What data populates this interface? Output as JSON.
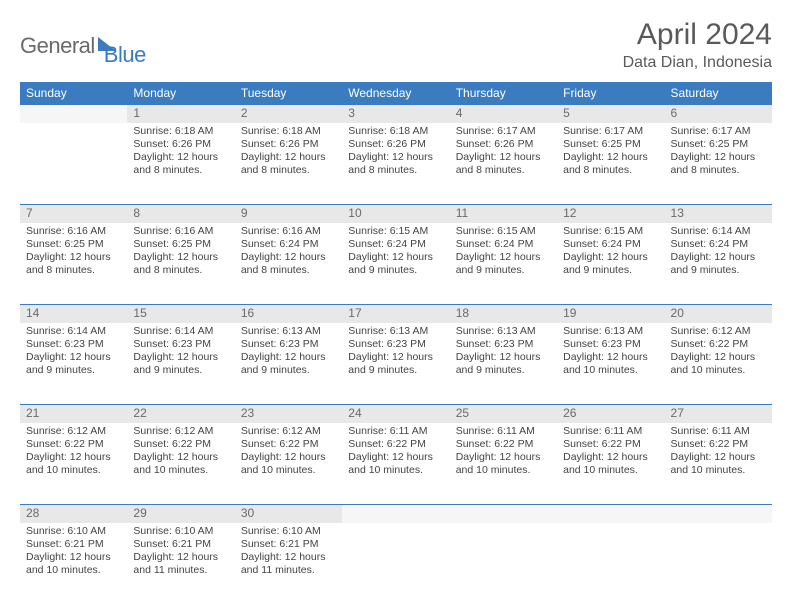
{
  "logo": {
    "part1": "General",
    "part2": "Blue"
  },
  "title": "April 2024",
  "location": "Data Dian, Indonesia",
  "header_bg": "#3b7bbf",
  "daynum_bg": "#e8e8e8",
  "text_color": "#444444",
  "day_headers": [
    "Sunday",
    "Monday",
    "Tuesday",
    "Wednesday",
    "Thursday",
    "Friday",
    "Saturday"
  ],
  "weeks": [
    [
      null,
      {
        "n": "1",
        "sr": "6:18 AM",
        "ss": "6:26 PM",
        "dl": "12 hours and 8 minutes."
      },
      {
        "n": "2",
        "sr": "6:18 AM",
        "ss": "6:26 PM",
        "dl": "12 hours and 8 minutes."
      },
      {
        "n": "3",
        "sr": "6:18 AM",
        "ss": "6:26 PM",
        "dl": "12 hours and 8 minutes."
      },
      {
        "n": "4",
        "sr": "6:17 AM",
        "ss": "6:26 PM",
        "dl": "12 hours and 8 minutes."
      },
      {
        "n": "5",
        "sr": "6:17 AM",
        "ss": "6:25 PM",
        "dl": "12 hours and 8 minutes."
      },
      {
        "n": "6",
        "sr": "6:17 AM",
        "ss": "6:25 PM",
        "dl": "12 hours and 8 minutes."
      }
    ],
    [
      {
        "n": "7",
        "sr": "6:16 AM",
        "ss": "6:25 PM",
        "dl": "12 hours and 8 minutes."
      },
      {
        "n": "8",
        "sr": "6:16 AM",
        "ss": "6:25 PM",
        "dl": "12 hours and 8 minutes."
      },
      {
        "n": "9",
        "sr": "6:16 AM",
        "ss": "6:24 PM",
        "dl": "12 hours and 8 minutes."
      },
      {
        "n": "10",
        "sr": "6:15 AM",
        "ss": "6:24 PM",
        "dl": "12 hours and 9 minutes."
      },
      {
        "n": "11",
        "sr": "6:15 AM",
        "ss": "6:24 PM",
        "dl": "12 hours and 9 minutes."
      },
      {
        "n": "12",
        "sr": "6:15 AM",
        "ss": "6:24 PM",
        "dl": "12 hours and 9 minutes."
      },
      {
        "n": "13",
        "sr": "6:14 AM",
        "ss": "6:24 PM",
        "dl": "12 hours and 9 minutes."
      }
    ],
    [
      {
        "n": "14",
        "sr": "6:14 AM",
        "ss": "6:23 PM",
        "dl": "12 hours and 9 minutes."
      },
      {
        "n": "15",
        "sr": "6:14 AM",
        "ss": "6:23 PM",
        "dl": "12 hours and 9 minutes."
      },
      {
        "n": "16",
        "sr": "6:13 AM",
        "ss": "6:23 PM",
        "dl": "12 hours and 9 minutes."
      },
      {
        "n": "17",
        "sr": "6:13 AM",
        "ss": "6:23 PM",
        "dl": "12 hours and 9 minutes."
      },
      {
        "n": "18",
        "sr": "6:13 AM",
        "ss": "6:23 PM",
        "dl": "12 hours and 9 minutes."
      },
      {
        "n": "19",
        "sr": "6:13 AM",
        "ss": "6:23 PM",
        "dl": "12 hours and 10 minutes."
      },
      {
        "n": "20",
        "sr": "6:12 AM",
        "ss": "6:22 PM",
        "dl": "12 hours and 10 minutes."
      }
    ],
    [
      {
        "n": "21",
        "sr": "6:12 AM",
        "ss": "6:22 PM",
        "dl": "12 hours and 10 minutes."
      },
      {
        "n": "22",
        "sr": "6:12 AM",
        "ss": "6:22 PM",
        "dl": "12 hours and 10 minutes."
      },
      {
        "n": "23",
        "sr": "6:12 AM",
        "ss": "6:22 PM",
        "dl": "12 hours and 10 minutes."
      },
      {
        "n": "24",
        "sr": "6:11 AM",
        "ss": "6:22 PM",
        "dl": "12 hours and 10 minutes."
      },
      {
        "n": "25",
        "sr": "6:11 AM",
        "ss": "6:22 PM",
        "dl": "12 hours and 10 minutes."
      },
      {
        "n": "26",
        "sr": "6:11 AM",
        "ss": "6:22 PM",
        "dl": "12 hours and 10 minutes."
      },
      {
        "n": "27",
        "sr": "6:11 AM",
        "ss": "6:22 PM",
        "dl": "12 hours and 10 minutes."
      }
    ],
    [
      {
        "n": "28",
        "sr": "6:10 AM",
        "ss": "6:21 PM",
        "dl": "12 hours and 10 minutes."
      },
      {
        "n": "29",
        "sr": "6:10 AM",
        "ss": "6:21 PM",
        "dl": "12 hours and 11 minutes."
      },
      {
        "n": "30",
        "sr": "6:10 AM",
        "ss": "6:21 PM",
        "dl": "12 hours and 11 minutes."
      },
      null,
      null,
      null,
      null
    ]
  ],
  "labels": {
    "sunrise": "Sunrise:",
    "sunset": "Sunset:",
    "daylight": "Daylight:"
  }
}
